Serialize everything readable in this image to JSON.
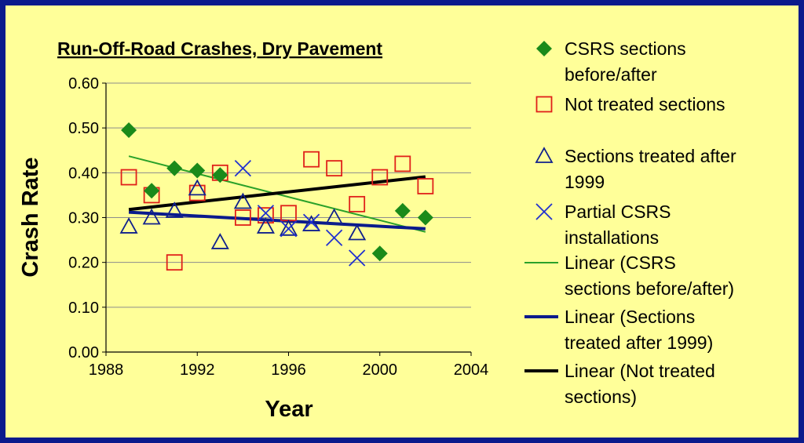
{
  "chart_data": {
    "type": "scatter",
    "title": "Run-Off-Road Crashes, Dry Pavement",
    "xlabel": "Year",
    "ylabel": "Crash Rate",
    "xlim": [
      1988,
      2004
    ],
    "ylim": [
      0,
      0.6
    ],
    "x_ticks": [
      "1988",
      "1992",
      "1996",
      "2000",
      "2004"
    ],
    "y_ticks": [
      "0.00",
      "0.10",
      "0.20",
      "0.30",
      "0.40",
      "0.50",
      "0.60"
    ],
    "grid": "horizontal",
    "legend_position": "right",
    "series": [
      {
        "name": "CSRS sections before/after",
        "marker": "diamond",
        "color": "#1a8a1a",
        "points": [
          [
            1989,
            0.495
          ],
          [
            1990,
            0.36
          ],
          [
            1991,
            0.41
          ],
          [
            1992,
            0.405
          ],
          [
            1993,
            0.395
          ],
          [
            2000,
            0.22
          ],
          [
            2001,
            0.315
          ],
          [
            2002,
            0.3
          ]
        ]
      },
      {
        "name": "Not treated sections",
        "marker": "square",
        "color": "#e0201a",
        "points": [
          [
            1989,
            0.39
          ],
          [
            1990,
            0.35
          ],
          [
            1991,
            0.2
          ],
          [
            1992,
            0.355
          ],
          [
            1993,
            0.4
          ],
          [
            1994,
            0.3
          ],
          [
            1995,
            0.305
          ],
          [
            1996,
            0.31
          ],
          [
            1997,
            0.43
          ],
          [
            1998,
            0.41
          ],
          [
            1999,
            0.33
          ],
          [
            2000,
            0.39
          ],
          [
            2001,
            0.42
          ],
          [
            2002,
            0.37
          ]
        ]
      },
      {
        "name": "Sections treated after 1999",
        "marker": "triangle",
        "color": "#10208c",
        "points": [
          [
            1989,
            0.28
          ],
          [
            1990,
            0.3
          ],
          [
            1991,
            0.315
          ],
          [
            1992,
            0.365
          ],
          [
            1993,
            0.245
          ],
          [
            1994,
            0.335
          ],
          [
            1995,
            0.28
          ],
          [
            1996,
            0.275
          ],
          [
            1997,
            0.285
          ],
          [
            1998,
            0.3
          ],
          [
            1999,
            0.265
          ]
        ]
      },
      {
        "name": "Partial CSRS installations",
        "marker": "x",
        "color": "#1f2fd0",
        "points": [
          [
            1994,
            0.41
          ],
          [
            1995,
            0.31
          ],
          [
            1996,
            0.275
          ],
          [
            1997,
            0.29
          ],
          [
            1998,
            0.255
          ],
          [
            1999,
            0.21
          ]
        ]
      }
    ],
    "trendlines": [
      {
        "name": "Linear (CSRS sections before/after)",
        "color": "#2aa12a",
        "width": 2,
        "from": [
          1989,
          0.437
        ],
        "to": [
          2002,
          0.268
        ]
      },
      {
        "name": "Linear (Sections treated after 1999)",
        "color": "#0a1a8c",
        "width": 4,
        "from": [
          1989,
          0.312
        ],
        "to": [
          2002,
          0.275
        ]
      },
      {
        "name": "Linear (Not treated sections)",
        "color": "#000000",
        "width": 4,
        "from": [
          1989,
          0.318
        ],
        "to": [
          2002,
          0.391
        ]
      }
    ],
    "legend": [
      {
        "symbol": "diamond",
        "color": "#1a8a1a",
        "lines": [
          "CSRS sections",
          "before/after"
        ]
      },
      {
        "symbol": "square",
        "color": "#e0201a",
        "lines": [
          "Not treated sections"
        ]
      },
      {
        "symbol": "triangle",
        "color": "#10208c",
        "lines": [
          "Sections treated after",
          "1999"
        ]
      },
      {
        "symbol": "x",
        "color": "#1f2fd0",
        "lines": [
          "Partial CSRS",
          "installations"
        ]
      },
      {
        "symbol": "line-thin",
        "color": "#2aa12a",
        "lines": [
          "Linear (CSRS",
          "sections before/after)"
        ]
      },
      {
        "symbol": "line-blue",
        "color": "#0a1a8c",
        "lines": [
          "Linear (Sections",
          "treated after 1999)"
        ]
      },
      {
        "symbol": "line-black",
        "color": "#000000",
        "lines": [
          "Linear (Not treated",
          "sections)"
        ]
      }
    ]
  }
}
